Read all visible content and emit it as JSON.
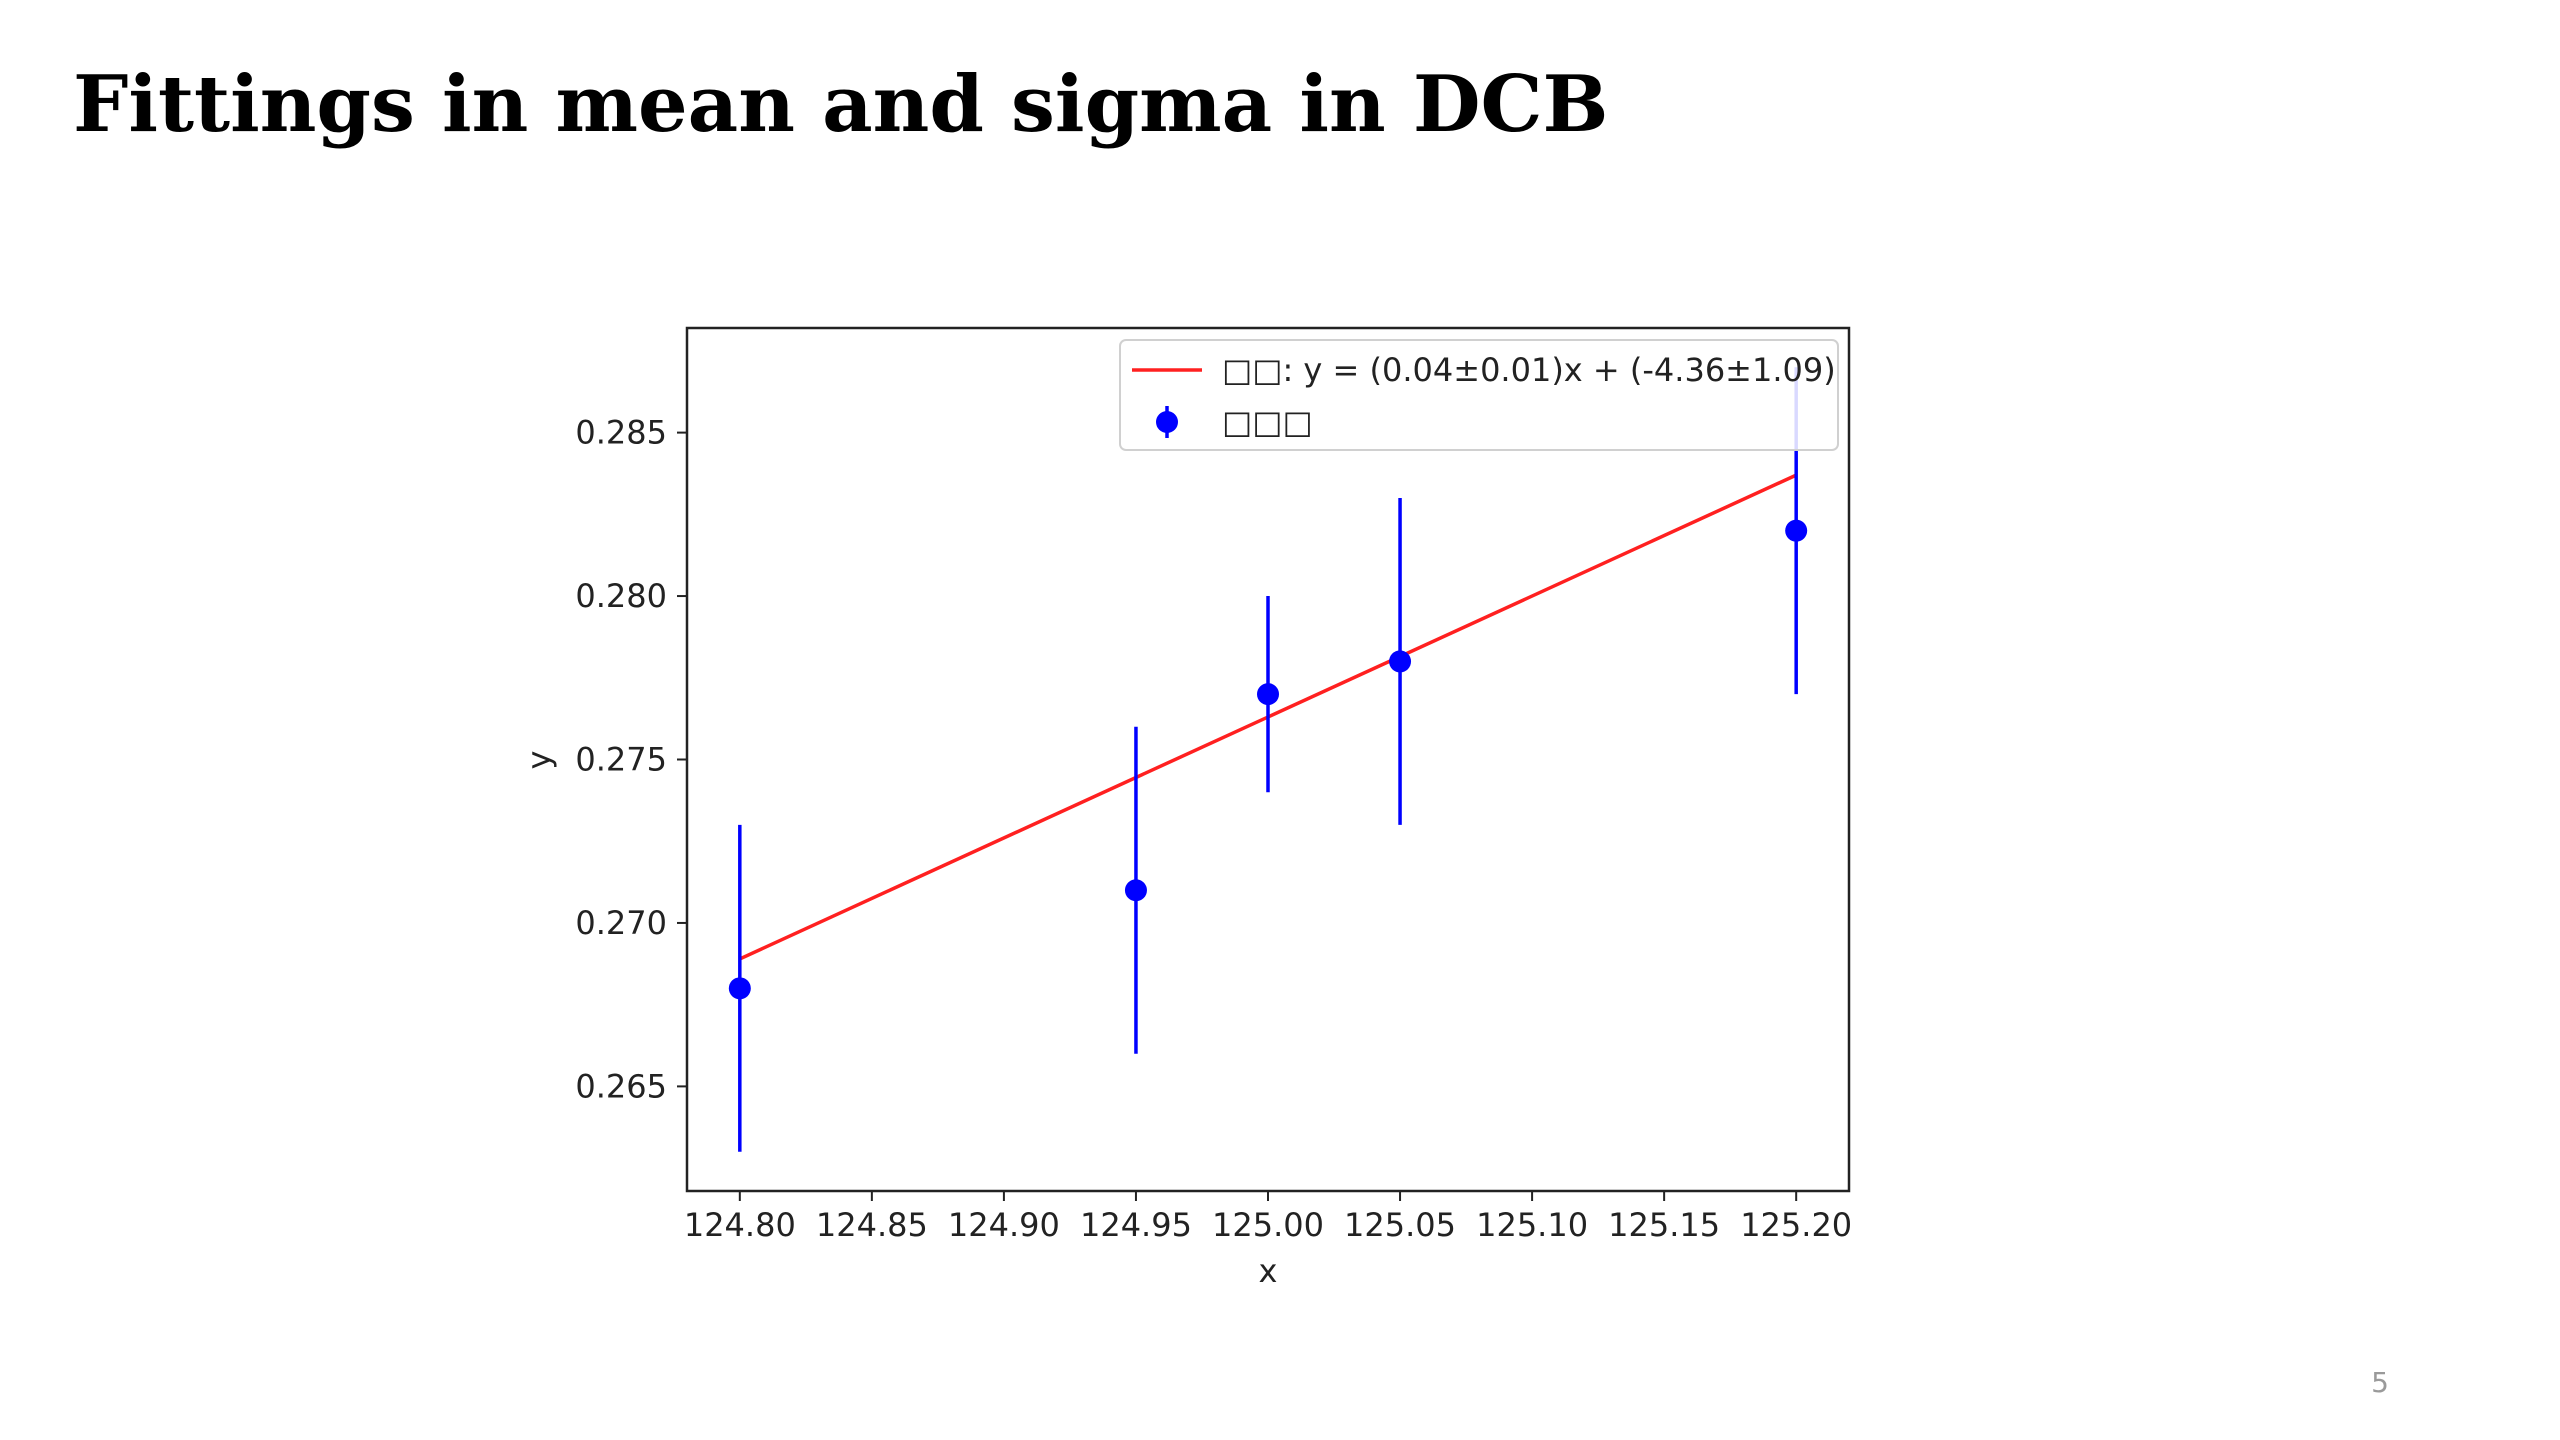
{
  "slide": {
    "title": "Fittings in mean and sigma in DCB",
    "page_number": "5"
  },
  "chart_data": {
    "type": "scatter",
    "xlabel": "x",
    "ylabel": "y",
    "xlim": [
      124.78,
      125.22
    ],
    "ylim": [
      0.2618,
      0.2882
    ],
    "xticks": [
      124.8,
      124.85,
      124.9,
      124.95,
      125.0,
      125.05,
      125.1,
      125.15,
      125.2
    ],
    "xtick_labels": [
      "124.80",
      "124.85",
      "124.90",
      "124.95",
      "125.00",
      "125.05",
      "125.10",
      "125.15",
      "125.20"
    ],
    "yticks": [
      0.265,
      0.27,
      0.275,
      0.28,
      0.285
    ],
    "ytick_labels": [
      "0.265",
      "0.270",
      "0.275",
      "0.280",
      "0.285"
    ],
    "grid": false,
    "legend_position": "upper-right",
    "series": [
      {
        "name": "□□: y = (0.04±0.01)x + (-4.36±1.09)",
        "kind": "line",
        "color": "#ff2020",
        "x": [
          124.8,
          125.2
        ],
        "y": [
          0.2689,
          0.2837
        ]
      },
      {
        "name": "□□□",
        "kind": "errorbar",
        "color": "#0000ff",
        "x": [
          124.8,
          124.95,
          125.0,
          125.05,
          125.2
        ],
        "y": [
          0.268,
          0.271,
          0.277,
          0.278,
          0.282
        ],
        "yerr": [
          0.005,
          0.005,
          0.003,
          0.005,
          0.005
        ]
      }
    ]
  }
}
